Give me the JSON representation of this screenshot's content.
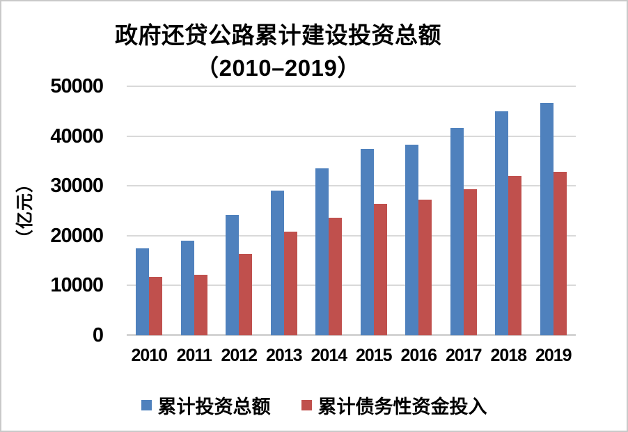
{
  "chart_data": {
    "type": "bar",
    "title_line1": "政府还贷公路累计建设投资总额",
    "title_line2": "（2010–2019）",
    "title": "政府还贷公路累计建设投资总额（2010–2019）",
    "ylabel": "（亿元）",
    "xlabel": "",
    "categories": [
      "2010",
      "2011",
      "2012",
      "2013",
      "2014",
      "2015",
      "2016",
      "2017",
      "2018",
      "2019"
    ],
    "series": [
      {
        "name": "累计投资总额",
        "color": "#4F81BD",
        "values": [
          17400,
          19000,
          24100,
          29000,
          33500,
          37400,
          38300,
          41600,
          45000,
          46600
        ]
      },
      {
        "name": "累计债务性资金投入",
        "color": "#C0504D",
        "values": [
          11800,
          12100,
          16300,
          20800,
          23600,
          26400,
          27200,
          29400,
          32000,
          32800
        ]
      }
    ],
    "ylim": [
      0,
      50000
    ],
    "yticks": [
      0,
      10000,
      20000,
      30000,
      40000,
      50000
    ],
    "grid": "horizontal",
    "gridline_color": "#D9D9D9",
    "legend_position": "bottom"
  }
}
